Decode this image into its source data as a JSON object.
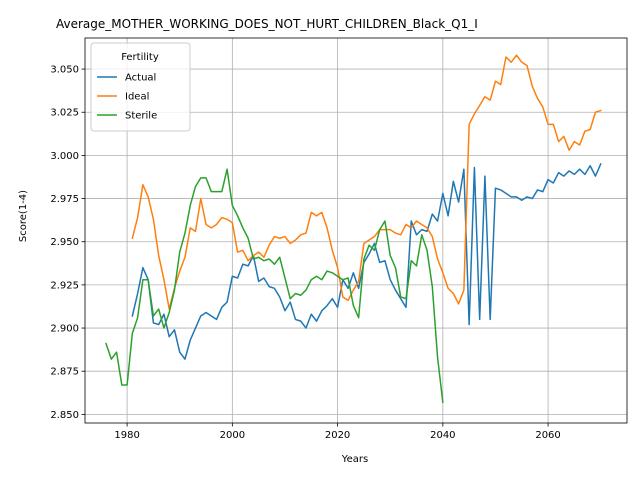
{
  "chart_data": {
    "type": "line",
    "title": "Average_MOTHER_WORKING_DOES_NOT_HURT_CHILDREN_Black_Q1_I",
    "xlabel": "Years",
    "ylabel": "Score(1-4)",
    "xlim": [
      1972,
      2075
    ],
    "ylim": [
      2.845,
      3.068
    ],
    "xticks": [
      1980,
      2000,
      2020,
      2040,
      2060
    ],
    "yticks": [
      2.85,
      2.875,
      2.9,
      2.925,
      2.95,
      2.975,
      3.0,
      3.025,
      3.05
    ],
    "ytick_labels": [
      "2.850",
      "2.875",
      "2.900",
      "2.925",
      "2.950",
      "2.975",
      "3.000",
      "3.025",
      "3.050"
    ],
    "grid": true,
    "legend": {
      "title": "Fertility",
      "position": "top-left"
    },
    "series": [
      {
        "name": "Actual",
        "color": "#1f77b4",
        "points": [
          [
            1981,
            2.907
          ],
          [
            1982,
            2.92
          ],
          [
            1983,
            2.935
          ],
          [
            1984,
            2.928
          ],
          [
            1985,
            2.903
          ],
          [
            1986,
            2.902
          ],
          [
            1987,
            2.908
          ],
          [
            1988,
            2.895
          ],
          [
            1989,
            2.899
          ],
          [
            1990,
            2.886
          ],
          [
            1991,
            2.882
          ],
          [
            1992,
            2.893
          ],
          [
            1993,
            2.9
          ],
          [
            1994,
            2.907
          ],
          [
            1995,
            2.909
          ],
          [
            1996,
            2.907
          ],
          [
            1997,
            2.905
          ],
          [
            1998,
            2.912
          ],
          [
            1999,
            2.915
          ],
          [
            2000,
            2.93
          ],
          [
            2001,
            2.929
          ],
          [
            2002,
            2.937
          ],
          [
            2003,
            2.936
          ],
          [
            2004,
            2.942
          ],
          [
            2005,
            2.927
          ],
          [
            2006,
            2.929
          ],
          [
            2007,
            2.924
          ],
          [
            2008,
            2.923
          ],
          [
            2009,
            2.918
          ],
          [
            2010,
            2.91
          ],
          [
            2011,
            2.915
          ],
          [
            2012,
            2.905
          ],
          [
            2013,
            2.904
          ],
          [
            2014,
            2.9
          ],
          [
            2015,
            2.908
          ],
          [
            2016,
            2.904
          ],
          [
            2017,
            2.91
          ],
          [
            2018,
            2.913
          ],
          [
            2019,
            2.917
          ],
          [
            2020,
            2.912
          ],
          [
            2021,
            2.928
          ],
          [
            2022,
            2.923
          ],
          [
            2023,
            2.932
          ],
          [
            2024,
            2.923
          ],
          [
            2025,
            2.938
          ],
          [
            2026,
            2.943
          ],
          [
            2027,
            2.949
          ],
          [
            2028,
            2.938
          ],
          [
            2029,
            2.939
          ],
          [
            2030,
            2.928
          ],
          [
            2031,
            2.922
          ],
          [
            2032,
            2.917
          ],
          [
            2033,
            2.912
          ],
          [
            2034,
            2.962
          ],
          [
            2035,
            2.954
          ],
          [
            2036,
            2.957
          ],
          [
            2037,
            2.956
          ],
          [
            2038,
            2.966
          ],
          [
            2039,
            2.962
          ],
          [
            2040,
            2.978
          ],
          [
            2041,
            2.965
          ],
          [
            2042,
            2.985
          ],
          [
            2043,
            2.973
          ],
          [
            2044,
            2.992
          ],
          [
            2045,
            2.902
          ],
          [
            2046,
            2.993
          ],
          [
            2047,
            2.905
          ],
          [
            2048,
            2.988
          ],
          [
            2049,
            2.905
          ],
          [
            2050,
            2.981
          ],
          [
            2051,
            2.98
          ],
          [
            2052,
            2.978
          ],
          [
            2053,
            2.976
          ],
          [
            2054,
            2.976
          ],
          [
            2055,
            2.974
          ],
          [
            2056,
            2.976
          ],
          [
            2057,
            2.975
          ],
          [
            2058,
            2.98
          ],
          [
            2059,
            2.979
          ],
          [
            2060,
            2.986
          ],
          [
            2061,
            2.984
          ],
          [
            2062,
            2.99
          ],
          [
            2063,
            2.988
          ],
          [
            2064,
            2.991
          ],
          [
            2065,
            2.989
          ],
          [
            2066,
            2.992
          ],
          [
            2067,
            2.989
          ],
          [
            2068,
            2.994
          ],
          [
            2069,
            2.988
          ],
          [
            2070,
            2.995
          ]
        ]
      },
      {
        "name": "Ideal",
        "color": "#ff7f0e",
        "points": [
          [
            1981,
            2.952
          ],
          [
            1982,
            2.964
          ],
          [
            1983,
            2.983
          ],
          [
            1984,
            2.976
          ],
          [
            1985,
            2.963
          ],
          [
            1986,
            2.942
          ],
          [
            1987,
            2.928
          ],
          [
            1988,
            2.911
          ],
          [
            1989,
            2.923
          ],
          [
            1990,
            2.933
          ],
          [
            1991,
            2.941
          ],
          [
            1992,
            2.958
          ],
          [
            1993,
            2.956
          ],
          [
            1994,
            2.975
          ],
          [
            1995,
            2.96
          ],
          [
            1996,
            2.958
          ],
          [
            1997,
            2.96
          ],
          [
            1998,
            2.964
          ],
          [
            1999,
            2.963
          ],
          [
            2000,
            2.961
          ],
          [
            2001,
            2.944
          ],
          [
            2002,
            2.945
          ],
          [
            2003,
            2.939
          ],
          [
            2004,
            2.942
          ],
          [
            2005,
            2.944
          ],
          [
            2006,
            2.941
          ],
          [
            2007,
            2.948
          ],
          [
            2008,
            2.953
          ],
          [
            2009,
            2.952
          ],
          [
            2010,
            2.953
          ],
          [
            2011,
            2.949
          ],
          [
            2012,
            2.951
          ],
          [
            2013,
            2.954
          ],
          [
            2014,
            2.955
          ],
          [
            2015,
            2.967
          ],
          [
            2016,
            2.965
          ],
          [
            2017,
            2.967
          ],
          [
            2018,
            2.958
          ],
          [
            2019,
            2.945
          ],
          [
            2020,
            2.935
          ],
          [
            2021,
            2.918
          ],
          [
            2022,
            2.916
          ],
          [
            2023,
            2.922
          ],
          [
            2024,
            2.927
          ],
          [
            2025,
            2.949
          ],
          [
            2026,
            2.951
          ],
          [
            2027,
            2.953
          ],
          [
            2028,
            2.957
          ],
          [
            2029,
            2.957
          ],
          [
            2030,
            2.957
          ],
          [
            2031,
            2.955
          ],
          [
            2032,
            2.954
          ],
          [
            2033,
            2.96
          ],
          [
            2034,
            2.958
          ],
          [
            2035,
            2.962
          ],
          [
            2036,
            2.96
          ],
          [
            2037,
            2.958
          ],
          [
            2038,
            2.953
          ],
          [
            2039,
            2.94
          ],
          [
            2040,
            2.932
          ],
          [
            2041,
            2.923
          ],
          [
            2042,
            2.92
          ],
          [
            2043,
            2.914
          ],
          [
            2044,
            2.922
          ],
          [
            2045,
            3.018
          ],
          [
            2046,
            3.024
          ],
          [
            2047,
            3.029
          ],
          [
            2048,
            3.034
          ],
          [
            2049,
            3.032
          ],
          [
            2050,
            3.043
          ],
          [
            2051,
            3.041
          ],
          [
            2052,
            3.057
          ],
          [
            2053,
            3.054
          ],
          [
            2054,
            3.058
          ],
          [
            2055,
            3.054
          ],
          [
            2056,
            3.052
          ],
          [
            2057,
            3.04
          ],
          [
            2058,
            3.033
          ],
          [
            2059,
            3.028
          ],
          [
            2060,
            3.018
          ],
          [
            2061,
            3.018
          ],
          [
            2062,
            3.008
          ],
          [
            2063,
            3.011
          ],
          [
            2064,
            3.003
          ],
          [
            2065,
            3.008
          ],
          [
            2066,
            3.006
          ],
          [
            2067,
            3.014
          ],
          [
            2068,
            3.015
          ],
          [
            2069,
            3.025
          ],
          [
            2070,
            3.026
          ]
        ]
      },
      {
        "name": "Sterile",
        "color": "#2ca02c",
        "points": [
          [
            1976,
            2.891
          ],
          [
            1977,
            2.882
          ],
          [
            1978,
            2.886
          ],
          [
            1979,
            2.867
          ],
          [
            1980,
            2.867
          ],
          [
            1981,
            2.897
          ],
          [
            1982,
            2.906
          ],
          [
            1983,
            2.928
          ],
          [
            1984,
            2.928
          ],
          [
            1985,
            2.907
          ],
          [
            1986,
            2.911
          ],
          [
            1987,
            2.9
          ],
          [
            1988,
            2.909
          ],
          [
            1989,
            2.922
          ],
          [
            1990,
            2.944
          ],
          [
            1991,
            2.955
          ],
          [
            1992,
            2.971
          ],
          [
            1993,
            2.982
          ],
          [
            1994,
            2.987
          ],
          [
            1995,
            2.987
          ],
          [
            1996,
            2.979
          ],
          [
            1997,
            2.979
          ],
          [
            1998,
            2.979
          ],
          [
            1999,
            2.992
          ],
          [
            2000,
            2.971
          ],
          [
            2001,
            2.965
          ],
          [
            2002,
            2.958
          ],
          [
            2003,
            2.952
          ],
          [
            2004,
            2.94
          ],
          [
            2005,
            2.941
          ],
          [
            2006,
            2.939
          ],
          [
            2007,
            2.94
          ],
          [
            2008,
            2.937
          ],
          [
            2009,
            2.941
          ],
          [
            2010,
            2.929
          ],
          [
            2011,
            2.917
          ],
          [
            2012,
            2.92
          ],
          [
            2013,
            2.919
          ],
          [
            2014,
            2.922
          ],
          [
            2015,
            2.928
          ],
          [
            2016,
            2.93
          ],
          [
            2017,
            2.928
          ],
          [
            2018,
            2.933
          ],
          [
            2019,
            2.932
          ],
          [
            2020,
            2.93
          ],
          [
            2021,
            2.928
          ],
          [
            2022,
            2.929
          ],
          [
            2023,
            2.913
          ],
          [
            2024,
            2.906
          ],
          [
            2025,
            2.94
          ],
          [
            2026,
            2.948
          ],
          [
            2027,
            2.945
          ],
          [
            2028,
            2.957
          ],
          [
            2029,
            2.962
          ],
          [
            2030,
            2.942
          ],
          [
            2031,
            2.935
          ],
          [
            2032,
            2.918
          ],
          [
            2033,
            2.917
          ],
          [
            2034,
            2.939
          ],
          [
            2035,
            2.936
          ],
          [
            2036,
            2.954
          ],
          [
            2037,
            2.945
          ],
          [
            2038,
            2.924
          ],
          [
            2039,
            2.883
          ],
          [
            2040,
            2.857
          ]
        ]
      }
    ]
  }
}
